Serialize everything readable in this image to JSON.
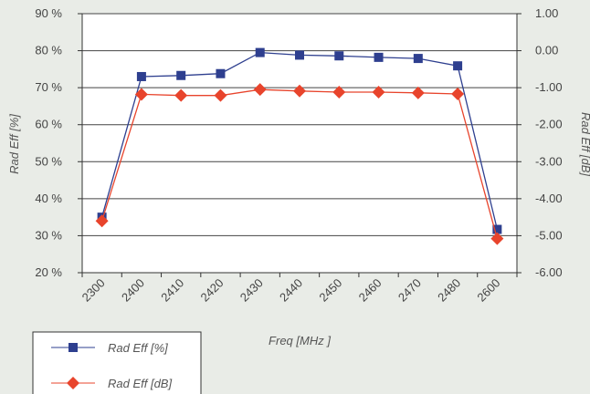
{
  "chart_data": {
    "type": "line",
    "categories": [
      "2300",
      "2400",
      "2410",
      "2420",
      "2430",
      "2440",
      "2450",
      "2460",
      "2470",
      "2480",
      "2600"
    ],
    "xlabel": "Freq [MHz ]",
    "ylabel": "Rad Eff [%]",
    "y2label": "Rad Eff [dB]",
    "ylim": [
      20,
      90
    ],
    "y2lim": [
      -6,
      1
    ],
    "yticks": [
      "20 %",
      "30 %",
      "40 %",
      "50 %",
      "60 %",
      "70 %",
      "80 %",
      "90 %"
    ],
    "y2ticks": [
      "-6.00",
      "-5.00",
      "-4.00",
      "-3.00",
      "-2.00",
      "-1.00",
      "0.00",
      "1.00"
    ],
    "grid": true,
    "legend_position": "bottom-left",
    "series": [
      {
        "name": "Rad Eff [%]",
        "axis": "left",
        "color": "#2e3f8f",
        "marker": "square",
        "values": [
          35.0,
          73.0,
          73.3,
          73.8,
          79.5,
          78.8,
          78.6,
          78.2,
          77.9,
          75.9,
          31.7
        ]
      },
      {
        "name": "Rad Eff [dB]",
        "axis": "right",
        "color": "#e8442c",
        "marker": "diamond",
        "values": [
          -4.6,
          -1.18,
          -1.21,
          -1.21,
          -1.05,
          -1.09,
          -1.12,
          -1.12,
          -1.14,
          -1.17,
          -5.08
        ]
      }
    ]
  }
}
